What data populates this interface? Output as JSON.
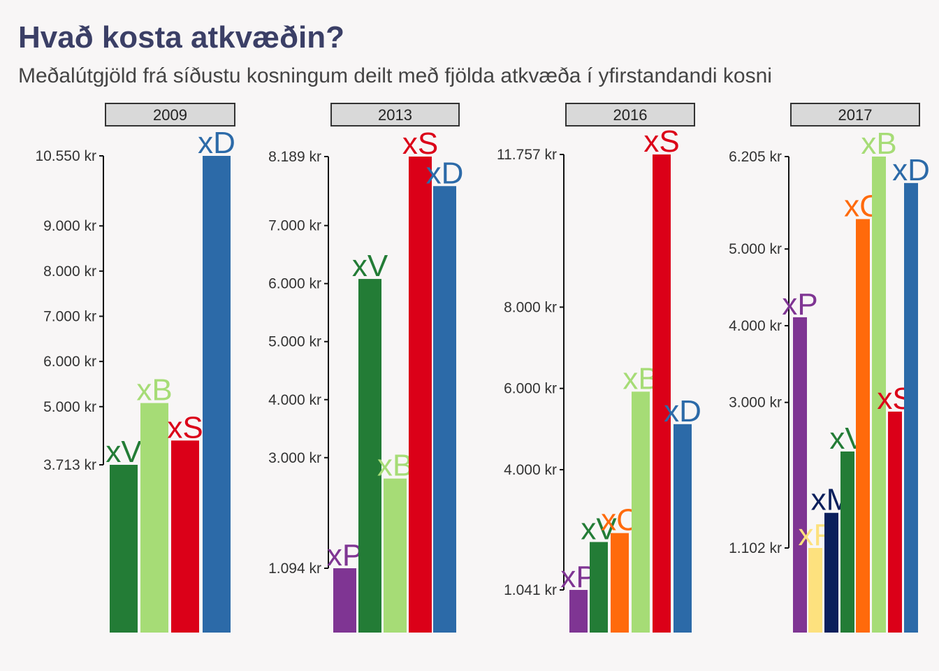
{
  "title": "Hvað kosta atkvæðin?",
  "subtitle": "Meðalútgjöld frá síðustu kosningum deilt með fjölda atkvæða í yfirstandandi kosni",
  "colors": {
    "xP": "#7f3593",
    "xF": "#fde17e",
    "xM": "#0b1f5c",
    "xV": "#237c36",
    "xC": "#ff6a0b",
    "xB": "#a6dc76",
    "xS": "#db0018",
    "xD": "#2c6aa8"
  },
  "chart_data": [
    {
      "type": "bar",
      "facet": "2009",
      "categories": [
        "xV",
        "xB",
        "xS",
        "xD"
      ],
      "values": [
        3713,
        5080,
        4250,
        10550
      ],
      "y_ticks": [
        3713,
        5000,
        6000,
        7000,
        8000,
        9000,
        10550
      ],
      "y_tick_labels": [
        "3.713 kr",
        "5.000 kr",
        "6.000 kr",
        "7.000 kr",
        "8.000 kr",
        "9.000 kr",
        "10.550 kr"
      ],
      "ylim": [
        3713,
        10550
      ]
    },
    {
      "type": "bar",
      "facet": "2013",
      "categories": [
        "xP",
        "xV",
        "xB",
        "xS",
        "xD"
      ],
      "values": [
        1094,
        6080,
        2640,
        8189,
        7680
      ],
      "y_ticks": [
        1094,
        3000,
        4000,
        5000,
        6000,
        7000,
        8189
      ],
      "y_tick_labels": [
        "1.094 kr",
        "3.000 kr",
        "4.000 kr",
        "5.000 kr",
        "6.000 kr",
        "7.000 kr",
        "8.189 kr"
      ],
      "ylim": [
        1094,
        8189
      ]
    },
    {
      "type": "bar",
      "facet": "2016",
      "categories": [
        "xP",
        "xV",
        "xC",
        "xB",
        "xS",
        "xD"
      ],
      "values": [
        1041,
        2220,
        2440,
        5920,
        11757,
        5120
      ],
      "y_ticks": [
        1041,
        4000,
        6000,
        8000,
        11757
      ],
      "y_tick_labels": [
        "1.041 kr",
        "4.000 kr",
        "6.000 kr",
        "8.000 kr",
        "11.757 kr"
      ],
      "ylim": [
        1041,
        11757
      ]
    },
    {
      "type": "bar",
      "facet": "2017",
      "categories": [
        "xP",
        "xF",
        "xM",
        "xV",
        "xC",
        "xB",
        "xS",
        "xD"
      ],
      "values": [
        4110,
        1102,
        1560,
        2360,
        5390,
        6205,
        2880,
        5860
      ],
      "y_ticks": [
        1102,
        3000,
        4000,
        5000,
        6205
      ],
      "y_tick_labels": [
        "1.102 kr",
        "3.000 kr",
        "4.000 kr",
        "5.000 kr",
        "6.205 kr"
      ],
      "ylim": [
        1102,
        6205
      ]
    }
  ]
}
